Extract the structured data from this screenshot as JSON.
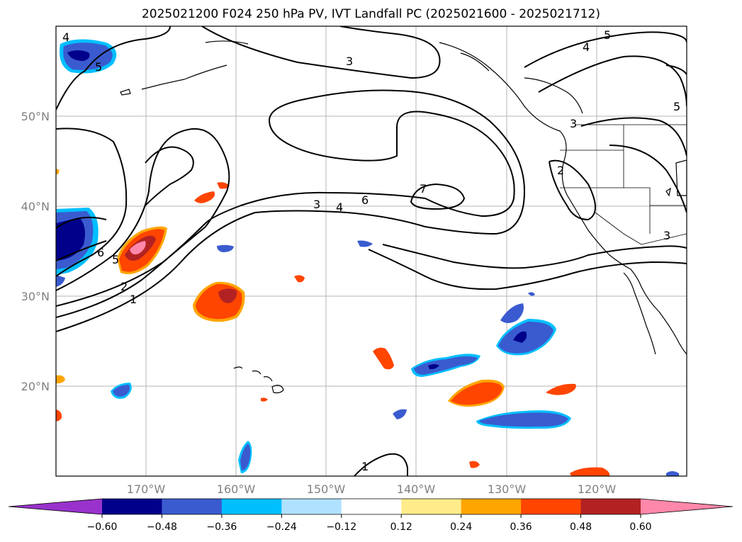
{
  "title": "2025021200 F024 250 hPa PV, IVT Landfall PC (2025021600 - 2025021712)",
  "map": {
    "projection": "PlateCarree",
    "lon_range": [
      -180,
      -110
    ],
    "lat_range": [
      10,
      60
    ],
    "gridlines": true,
    "lat_labels": [
      "50°N",
      "40°N",
      "30°N",
      "20°N"
    ],
    "lon_labels": [
      "170°W",
      "160°W",
      "150°W",
      "140°W",
      "130°W",
      "120°W"
    ]
  },
  "contours": {
    "variable": "IVT Landfall PC",
    "color": "#000000",
    "labels": [
      "5",
      "4",
      "3",
      "5",
      "3",
      "2",
      "7",
      "6",
      "4",
      "3",
      "6",
      "5",
      "2",
      "1",
      "1",
      "3",
      "4",
      "5"
    ]
  },
  "colorbar": {
    "ticks": [
      "−0.60",
      "−0.48",
      "−0.36",
      "−0.24",
      "−0.12",
      "0.12",
      "0.24",
      "0.36",
      "0.48",
      "0.60"
    ],
    "colors": [
      "#9932cc",
      "#00008b",
      "#3a5bcf",
      "#00bfff",
      "#b0e2ff",
      "#ffffff",
      "#ffec8b",
      "#ffa500",
      "#ff4500",
      "#b22222",
      "#ff88aa"
    ],
    "extend": "both"
  },
  "fill_colors": {
    "dark_blue": "#00008b",
    "blue": "#3a5bcf",
    "light_blue": "#00bfff",
    "yellow": "#ffec8b",
    "orange": "#ffa500",
    "red_orange": "#ff4500",
    "dark_red": "#b22222",
    "pink": "#ff88aa"
  }
}
